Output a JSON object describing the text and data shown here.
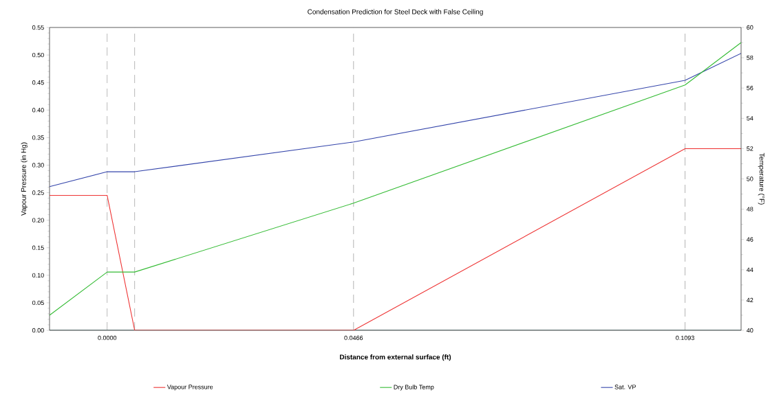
{
  "chart_data": {
    "type": "line",
    "title": "Condensation Prediction for Steel Deck with False Ceiling",
    "xlabel": "Distance from external surface (ft)",
    "ylabel": "Vapour Pressure (in Hg)",
    "y2label": "Temperature (°F)",
    "x": [
      -0.0109,
      0,
      0.0052,
      0.0466,
      0.1093,
      0.1199
    ],
    "series": [
      {
        "color": "#1f3f3f",
        "values": [
          0,
          0,
          0,
          0,
          0,
          0
        ]
      },
      {
        "name": "Vapour Pressure",
        "color": "#ee3333",
        "values": [
          0.245,
          0.245,
          0,
          0,
          0.33,
          0.33
        ]
      },
      {
        "name": "Dry Bulb Temp",
        "color": "#33bb33",
        "axis": "y2",
        "values": [
          41.0,
          43.85,
          43.85,
          48.4,
          56.2,
          59.0
        ]
      },
      {
        "name": "Sat. VP",
        "color": "#3344aa",
        "values": [
          0.261,
          0.288,
          0.288,
          0.342,
          0.454,
          0.503
        ]
      }
    ],
    "xlim": [
      -0.0109,
      0.1199
    ],
    "xticks": [
      {
        "value": 0,
        "label": "0.0000"
      },
      0.0466,
      0.1093
    ],
    "ylim": [
      0,
      0.55
    ],
    "yticks": [
      {
        "value": 0,
        "label": "0.00"
      },
      {
        "value": 0.05,
        "label": "0.05"
      },
      {
        "value": 0.1,
        "label": "0.10"
      },
      {
        "value": 0.15,
        "label": "0.15"
      },
      {
        "value": 0.2,
        "label": "0.20"
      },
      {
        "value": 0.25,
        "label": "0.25"
      },
      {
        "value": 0.3,
        "label": "0.30"
      },
      {
        "value": 0.35,
        "label": "0.35"
      },
      {
        "value": 0.4,
        "label": "0.40"
      },
      {
        "value": 0.45,
        "label": "0.45"
      },
      {
        "value": 0.5,
        "label": "0.50"
      },
      {
        "value": 0.55,
        "label": "0.55"
      }
    ],
    "y2lim": [
      40,
      60
    ],
    "y2ticks": [
      40,
      42,
      44,
      46,
      48,
      50,
      52,
      54,
      56,
      58,
      60
    ],
    "ref_lines": [
      {
        "axis": "x",
        "value": 0,
        "color": "#aaaaaa",
        "line_style": "dashed"
      },
      {
        "axis": "x",
        "value": 0.0052,
        "color": "#aaaaaa",
        "line_style": "dashed"
      },
      {
        "axis": "x",
        "value": 0.0466,
        "color": "#aaaaaa",
        "line_style": "dashed"
      },
      {
        "axis": "x",
        "value": 0.1093,
        "color": "#aaaaaa",
        "line_style": "dashed"
      }
    ],
    "legend": "bottom",
    "grid": false,
    "marker": "none",
    "line_style": "solid"
  }
}
